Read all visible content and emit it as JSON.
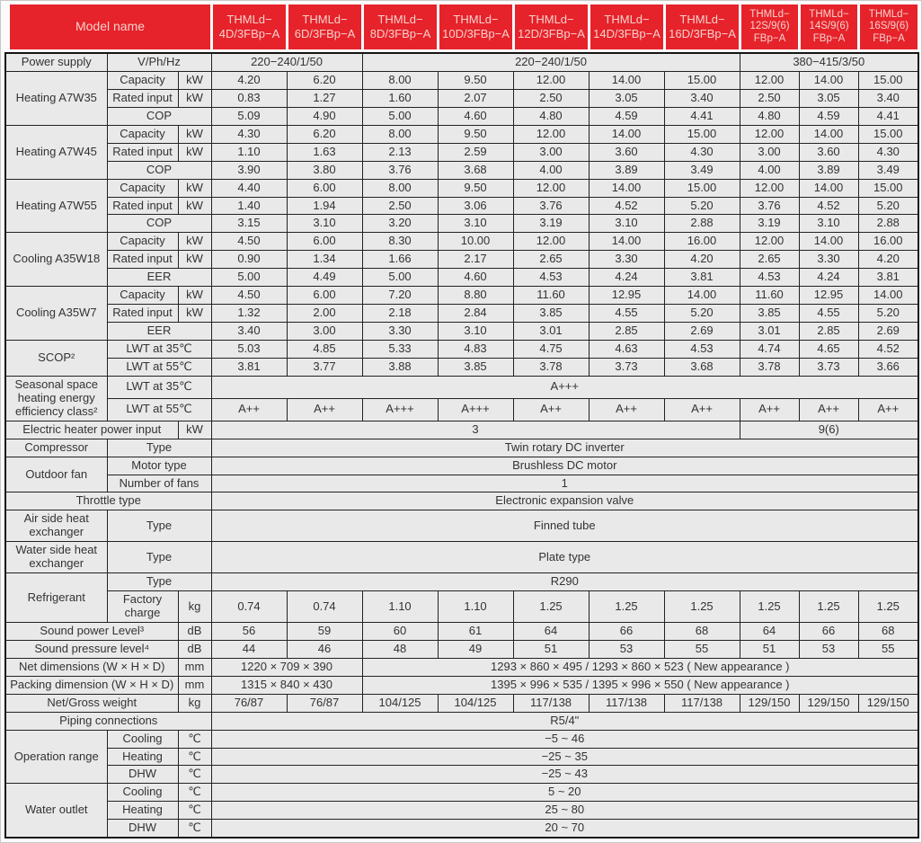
{
  "colors": {
    "header_bg": "#e6222b",
    "header_text": "#f6d2cb",
    "cell_bg": "#e9e9e9",
    "cell_text": "#333333",
    "border": "#222222"
  },
  "header": {
    "model_label": "Model name",
    "models": [
      "THMLd−\n4D/3FBp−A",
      "THMLd−\n6D/3FBp−A",
      "THMLd−\n8D/3FBp−A",
      "THMLd−\n10D/3FBp−A",
      "THMLd−\n12D/3FBp−A",
      "THMLd−\n14D/3FBp−A",
      "THMLd−\n16D/3FBp−A",
      "THMLd−\n12S/9(6)\nFBp−A",
      "THMLd−\n14S/9(6)\nFBp−A",
      "THMLd−\n16S/9(6)\nFBp−A"
    ]
  },
  "rows": [
    [
      {
        "t": "Power supply",
        "l": 1
      },
      {
        "t": "V/Ph/Hz",
        "c": 2,
        "l": 1
      },
      {
        "t": "220−240/1/50",
        "c": 2
      },
      {
        "t": "220−240/1/50",
        "c": 5
      },
      {
        "t": "380−415/3/50",
        "c": 3
      }
    ],
    [
      {
        "t": "Heating A7W35",
        "r": 3,
        "l": 1
      },
      {
        "t": "Capacity",
        "l": 1
      },
      {
        "t": "kW",
        "l": 1
      },
      "4.20",
      "6.20",
      "8.00",
      "9.50",
      "12.00",
      "14.00",
      "15.00",
      "12.00",
      "14.00",
      "15.00"
    ],
    [
      {
        "t": "Rated input",
        "l": 1
      },
      {
        "t": "kW",
        "l": 1
      },
      "0.83",
      "1.27",
      "1.60",
      "2.07",
      "2.50",
      "3.05",
      "3.40",
      "2.50",
      "3.05",
      "3.40"
    ],
    [
      {
        "t": "COP",
        "c": 2,
        "l": 1
      },
      "5.09",
      "4.90",
      "5.00",
      "4.60",
      "4.80",
      "4.59",
      "4.41",
      "4.80",
      "4.59",
      "4.41"
    ],
    [
      {
        "t": "Heating A7W45",
        "r": 3,
        "l": 1
      },
      {
        "t": "Capacity",
        "l": 1
      },
      {
        "t": "kW",
        "l": 1
      },
      "4.30",
      "6.20",
      "8.00",
      "9.50",
      "12.00",
      "14.00",
      "15.00",
      "12.00",
      "14.00",
      "15.00"
    ],
    [
      {
        "t": "Rated input",
        "l": 1
      },
      {
        "t": "kW",
        "l": 1
      },
      "1.10",
      "1.63",
      "2.13",
      "2.59",
      "3.00",
      "3.60",
      "4.30",
      "3.00",
      "3.60",
      "4.30"
    ],
    [
      {
        "t": "COP",
        "c": 2,
        "l": 1
      },
      "3.90",
      "3.80",
      "3.76",
      "3.68",
      "4.00",
      "3.89",
      "3.49",
      "4.00",
      "3.89",
      "3.49"
    ],
    [
      {
        "t": "Heating A7W55",
        "r": 3,
        "l": 1
      },
      {
        "t": "Capacity",
        "l": 1
      },
      {
        "t": "kW",
        "l": 1
      },
      "4.40",
      "6.00",
      "8.00",
      "9.50",
      "12.00",
      "14.00",
      "15.00",
      "12.00",
      "14.00",
      "15.00"
    ],
    [
      {
        "t": "Rated input",
        "l": 1
      },
      {
        "t": "kW",
        "l": 1
      },
      "1.40",
      "1.94",
      "2.50",
      "3.06",
      "3.76",
      "4.52",
      "5.20",
      "3.76",
      "4.52",
      "5.20"
    ],
    [
      {
        "t": "COP",
        "c": 2,
        "l": 1
      },
      "3.15",
      "3.10",
      "3.20",
      "3.10",
      "3.19",
      "3.10",
      "2.88",
      "3.19",
      "3.10",
      "2.88"
    ],
    [
      {
        "t": "Cooling A35W18",
        "r": 3,
        "l": 1
      },
      {
        "t": "Capacity",
        "l": 1
      },
      {
        "t": "kW",
        "l": 1
      },
      "4.50",
      "6.00",
      "8.30",
      "10.00",
      "12.00",
      "14.00",
      "16.00",
      "12.00",
      "14.00",
      "16.00"
    ],
    [
      {
        "t": "Rated input",
        "l": 1
      },
      {
        "t": "kW",
        "l": 1
      },
      "0.90",
      "1.34",
      "1.66",
      "2.17",
      "2.65",
      "3.30",
      "4.20",
      "2.65",
      "3.30",
      "4.20"
    ],
    [
      {
        "t": "EER",
        "c": 2,
        "l": 1
      },
      "5.00",
      "4.49",
      "5.00",
      "4.60",
      "4.53",
      "4.24",
      "3.81",
      "4.53",
      "4.24",
      "3.81"
    ],
    [
      {
        "t": "Cooling A35W7",
        "r": 3,
        "l": 1
      },
      {
        "t": "Capacity",
        "l": 1
      },
      {
        "t": "kW",
        "l": 1
      },
      "4.50",
      "6.00",
      "7.20",
      "8.80",
      "11.60",
      "12.95",
      "14.00",
      "11.60",
      "12.95",
      "14.00"
    ],
    [
      {
        "t": "Rated input",
        "l": 1
      },
      {
        "t": "kW",
        "l": 1
      },
      "1.32",
      "2.00",
      "2.18",
      "2.84",
      "3.85",
      "4.55",
      "5.20",
      "3.85",
      "4.55",
      "5.20"
    ],
    [
      {
        "t": "EER",
        "c": 2,
        "l": 1
      },
      "3.40",
      "3.00",
      "3.30",
      "3.10",
      "3.01",
      "2.85",
      "2.69",
      "3.01",
      "2.85",
      "2.69"
    ],
    [
      {
        "t": "SCOP²",
        "r": 2,
        "l": 1
      },
      {
        "t": "LWT at 35℃",
        "c": 2,
        "l": 1
      },
      "5.03",
      "4.85",
      "5.33",
      "4.83",
      "4.75",
      "4.63",
      "4.53",
      "4.74",
      "4.65",
      "4.52"
    ],
    [
      {
        "t": "LWT at 55℃",
        "c": 2,
        "l": 1
      },
      "3.81",
      "3.77",
      "3.88",
      "3.85",
      "3.78",
      "3.73",
      "3.68",
      "3.78",
      "3.73",
      "3.66"
    ],
    [
      {
        "t": "Seasonal space heating energy efficiency class²",
        "r": 2,
        "l": 1
      },
      {
        "t": "LWT at 35℃",
        "c": 2,
        "l": 1
      },
      {
        "t": "A+++",
        "c": 10
      }
    ],
    [
      {
        "t": "LWT at 55℃",
        "c": 2,
        "l": 1
      },
      "A++",
      "A++",
      "A+++",
      "A+++",
      "A++",
      "A++",
      "A++",
      "A++",
      "A++",
      "A++"
    ],
    [
      {
        "t": "Electric heater power input",
        "c": 2,
        "l": 1
      },
      {
        "t": "kW",
        "l": 1
      },
      {
        "t": "3",
        "c": 7
      },
      {
        "t": "9(6)",
        "c": 3
      }
    ],
    [
      {
        "t": "Compressor",
        "l": 1
      },
      {
        "t": "Type",
        "c": 2,
        "l": 1
      },
      {
        "t": "Twin rotary DC inverter",
        "c": 10
      }
    ],
    [
      {
        "t": "Outdoor fan",
        "r": 2,
        "l": 1
      },
      {
        "t": "Motor type",
        "c": 2,
        "l": 1
      },
      {
        "t": "Brushless DC motor",
        "c": 10
      }
    ],
    [
      {
        "t": "Number of fans",
        "c": 2,
        "l": 1
      },
      {
        "t": "1",
        "c": 10
      }
    ],
    [
      {
        "t": "Throttle type",
        "c": 3,
        "l": 1
      },
      {
        "t": "Electronic expansion valve",
        "c": 10
      }
    ],
    [
      {
        "t": "Air side heat exchanger",
        "l": 1
      },
      {
        "t": "Type",
        "c": 2,
        "l": 1
      },
      {
        "t": "Finned tube",
        "c": 10
      }
    ],
    [
      {
        "t": "Water side heat exchanger",
        "l": 1
      },
      {
        "t": "Type",
        "c": 2,
        "l": 1
      },
      {
        "t": "Plate type",
        "c": 10
      }
    ],
    [
      {
        "t": "Refrigerant",
        "r": 2,
        "l": 1
      },
      {
        "t": "Type",
        "c": 2,
        "l": 1
      },
      {
        "t": "R290",
        "c": 10
      }
    ],
    [
      {
        "t": "Factory charge",
        "l": 1
      },
      {
        "t": "kg",
        "l": 1
      },
      "0.74",
      "0.74",
      "1.10",
      "1.10",
      "1.25",
      "1.25",
      "1.25",
      "1.25",
      "1.25",
      "1.25"
    ],
    [
      {
        "t": "Sound power Level³",
        "c": 2,
        "l": 1
      },
      {
        "t": "dB",
        "l": 1
      },
      "56",
      "59",
      "60",
      "61",
      "64",
      "66",
      "68",
      "64",
      "66",
      "68"
    ],
    [
      {
        "t": "Sound pressure level⁴",
        "c": 2,
        "l": 1
      },
      {
        "t": "dB",
        "l": 1
      },
      "44",
      "46",
      "48",
      "49",
      "51",
      "53",
      "55",
      "51",
      "53",
      "55"
    ],
    [
      {
        "t": "Net dimensions (W × H × D)",
        "c": 2,
        "l": 1
      },
      {
        "t": "mm",
        "l": 1
      },
      {
        "t": "1220 × 709 × 390",
        "c": 2
      },
      {
        "t": "1293 × 860 × 495 / 1293 × 860 × 523 ( New appearance )",
        "c": 8
      }
    ],
    [
      {
        "t": "Packing dimension (W × H × D)",
        "c": 2,
        "l": 1
      },
      {
        "t": "mm",
        "l": 1
      },
      {
        "t": "1315 × 840 × 430",
        "c": 2
      },
      {
        "t": "1395 × 996 × 535 / 1395 × 996 × 550 ( New appearance )",
        "c": 8
      }
    ],
    [
      {
        "t": "Net/Gross weight",
        "c": 2,
        "l": 1
      },
      {
        "t": "kg",
        "l": 1
      },
      "76/87",
      "76/87",
      "104/125",
      "104/125",
      "117/138",
      "117/138",
      "117/138",
      "129/150",
      "129/150",
      "129/150"
    ],
    [
      {
        "t": "Piping connections",
        "c": 3,
        "l": 1
      },
      {
        "t": "R5/4\"",
        "c": 10
      }
    ],
    [
      {
        "t": "Operation range",
        "r": 3,
        "l": 1
      },
      {
        "t": "Cooling",
        "l": 1
      },
      {
        "t": "℃",
        "l": 1
      },
      {
        "t": "−5 ~ 46",
        "c": 10
      }
    ],
    [
      {
        "t": "Heating",
        "l": 1
      },
      {
        "t": "℃",
        "l": 1
      },
      {
        "t": "−25 ~ 35",
        "c": 10
      }
    ],
    [
      {
        "t": "DHW",
        "l": 1
      },
      {
        "t": "℃",
        "l": 1
      },
      {
        "t": "−25 ~ 43",
        "c": 10
      }
    ],
    [
      {
        "t": "Water outlet",
        "r": 3,
        "l": 1
      },
      {
        "t": "Cooling",
        "l": 1
      },
      {
        "t": "℃",
        "l": 1
      },
      {
        "t": "5 ~ 20",
        "c": 10
      }
    ],
    [
      {
        "t": "Heating",
        "l": 1
      },
      {
        "t": "℃",
        "l": 1
      },
      {
        "t": "25 ~ 80",
        "c": 10
      }
    ],
    [
      {
        "t": "DHW",
        "l": 1
      },
      {
        "t": "℃",
        "l": 1
      },
      {
        "t": "20 ~ 70",
        "c": 10
      }
    ]
  ]
}
